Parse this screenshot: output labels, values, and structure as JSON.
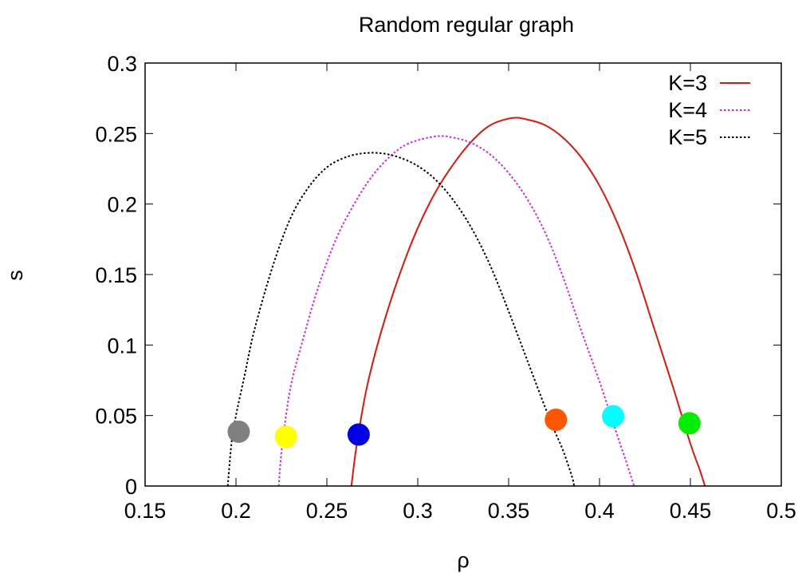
{
  "chart_data": {
    "type": "line",
    "title": "Random regular graph",
    "xlabel": "ρ",
    "ylabel": "s",
    "xlim": [
      0.15,
      0.5
    ],
    "ylim": [
      0,
      0.3
    ],
    "xticks": [
      "0.15",
      "0.2",
      "0.25",
      "0.3",
      "0.35",
      "0.4",
      "0.45",
      "0.5"
    ],
    "yticks": [
      "0",
      "0.05",
      "0.1",
      "0.15",
      "0.2",
      "0.25",
      "0.3"
    ],
    "grid": false,
    "legend_position": "top-right",
    "series": [
      {
        "name": "K=3",
        "color": "#e8120c",
        "style": "solid",
        "points": [
          [
            0.2635,
            0.0
          ],
          [
            0.2665,
            0.03
          ],
          [
            0.272,
            0.07
          ],
          [
            0.28,
            0.11
          ],
          [
            0.29,
            0.15
          ],
          [
            0.3,
            0.183
          ],
          [
            0.31,
            0.209
          ],
          [
            0.32,
            0.229
          ],
          [
            0.33,
            0.245
          ],
          [
            0.34,
            0.256
          ],
          [
            0.352,
            0.261
          ],
          [
            0.36,
            0.26
          ],
          [
            0.37,
            0.256
          ],
          [
            0.38,
            0.247
          ],
          [
            0.39,
            0.233
          ],
          [
            0.4,
            0.213
          ],
          [
            0.41,
            0.186
          ],
          [
            0.42,
            0.152
          ],
          [
            0.43,
            0.112
          ],
          [
            0.44,
            0.072
          ],
          [
            0.45,
            0.03
          ],
          [
            0.455,
            0.012
          ],
          [
            0.458,
            0.0
          ]
        ]
      },
      {
        "name": "K=4",
        "color": "#e020e0",
        "style": "dotted",
        "points": [
          [
            0.2235,
            0.0
          ],
          [
            0.2255,
            0.03
          ],
          [
            0.23,
            0.07
          ],
          [
            0.236,
            0.1
          ],
          [
            0.245,
            0.14
          ],
          [
            0.255,
            0.175
          ],
          [
            0.265,
            0.2
          ],
          [
            0.275,
            0.22
          ],
          [
            0.285,
            0.234
          ],
          [
            0.295,
            0.243
          ],
          [
            0.31,
            0.248
          ],
          [
            0.32,
            0.247
          ],
          [
            0.33,
            0.243
          ],
          [
            0.34,
            0.235
          ],
          [
            0.35,
            0.222
          ],
          [
            0.36,
            0.204
          ],
          [
            0.37,
            0.18
          ],
          [
            0.38,
            0.148
          ],
          [
            0.39,
            0.11
          ],
          [
            0.4,
            0.074
          ],
          [
            0.41,
            0.035
          ],
          [
            0.415,
            0.016
          ],
          [
            0.419,
            0.0
          ]
        ]
      },
      {
        "name": "K=5",
        "color": "#000000",
        "style": "dotted",
        "points": [
          [
            0.1955,
            0.0
          ],
          [
            0.1975,
            0.03
          ],
          [
            0.2,
            0.05
          ],
          [
            0.205,
            0.08
          ],
          [
            0.21,
            0.11
          ],
          [
            0.22,
            0.155
          ],
          [
            0.23,
            0.19
          ],
          [
            0.24,
            0.212
          ],
          [
            0.25,
            0.226
          ],
          [
            0.26,
            0.233
          ],
          [
            0.27,
            0.236
          ],
          [
            0.28,
            0.236
          ],
          [
            0.29,
            0.233
          ],
          [
            0.3,
            0.227
          ],
          [
            0.31,
            0.217
          ],
          [
            0.32,
            0.202
          ],
          [
            0.33,
            0.182
          ],
          [
            0.34,
            0.156
          ],
          [
            0.35,
            0.124
          ],
          [
            0.36,
            0.09
          ],
          [
            0.37,
            0.056
          ],
          [
            0.375,
            0.04
          ],
          [
            0.38,
            0.025
          ],
          [
            0.385,
            0.006
          ],
          [
            0.386,
            0.0
          ]
        ]
      }
    ],
    "markers": [
      {
        "x": 0.2015,
        "y": 0.0385,
        "color": "#808080"
      },
      {
        "x": 0.2275,
        "y": 0.035,
        "color": "#ffff00"
      },
      {
        "x": 0.2675,
        "y": 0.0365,
        "color": "#0000e8"
      },
      {
        "x": 0.376,
        "y": 0.047,
        "color": "#ff5500"
      },
      {
        "x": 0.4075,
        "y": 0.0495,
        "color": "#00ffff"
      },
      {
        "x": 0.4495,
        "y": 0.0445,
        "color": "#00ee00"
      }
    ]
  }
}
